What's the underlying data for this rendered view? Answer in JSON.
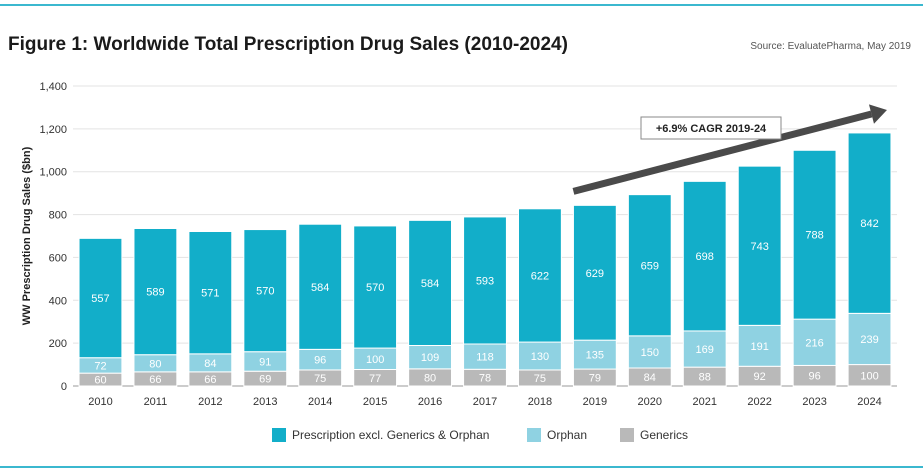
{
  "header": {
    "title": "Figure 1: Worldwide Total Prescription Drug Sales (2010-2024)",
    "source": "Source: EvaluatePharma, May 2019"
  },
  "chart_data": {
    "type": "bar",
    "stacked": true,
    "title": "Figure 1: Worldwide Total Prescription Drug Sales (2010-2024)",
    "ylabel": "WW Prescription Drug Sales ($bn)",
    "xlabel": "",
    "ylim": [
      0,
      1400
    ],
    "yticks": [
      "0",
      "200",
      "400",
      "600",
      "800",
      "1,000",
      "1,200",
      "1,400"
    ],
    "grid": true,
    "legend_position": "bottom",
    "categories": [
      "2010",
      "2011",
      "2012",
      "2013",
      "2014",
      "2015",
      "2016",
      "2017",
      "2018",
      "2019",
      "2020",
      "2021",
      "2022",
      "2023",
      "2024"
    ],
    "series": [
      {
        "name": "Generics",
        "color": "#b9b9b9",
        "values": [
          60,
          66,
          66,
          69,
          75,
          77,
          80,
          78,
          75,
          79,
          84,
          88,
          92,
          96,
          100
        ]
      },
      {
        "name": "Orphan",
        "color": "#8fd2e2",
        "values": [
          72,
          80,
          84,
          91,
          96,
          100,
          109,
          118,
          130,
          135,
          150,
          169,
          191,
          216,
          239
        ]
      },
      {
        "name": "Prescription excl. Generics & Orphan",
        "color": "#12aec9",
        "values": [
          557,
          589,
          571,
          570,
          584,
          570,
          584,
          593,
          622,
          629,
          659,
          698,
          743,
          788,
          842
        ]
      }
    ],
    "legend_order": [
      "Prescription excl. Generics & Orphan",
      "Orphan",
      "Generics"
    ],
    "annotation": {
      "text": "+6.9% CAGR 2019-24",
      "from_year": "2019",
      "to_year": "2024"
    }
  }
}
